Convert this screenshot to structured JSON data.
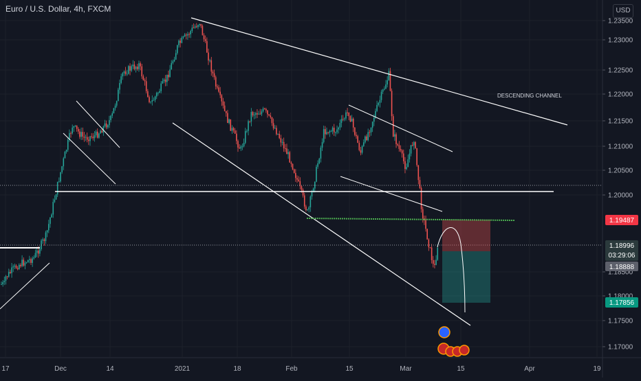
{
  "header": {
    "title": "Euro / U.S. Dollar, 4h, FXCM",
    "currency": "USD"
  },
  "annotation": {
    "channel_label": "DESCENDING CHANNEL"
  },
  "price_axis": {
    "ticks": [
      "1.23500",
      "1.23000",
      "1.22500",
      "1.22000",
      "1.21500",
      "1.21000",
      "1.20500",
      "1.20000",
      "1.18500",
      "1.18000",
      "1.17500",
      "1.17000"
    ]
  },
  "time_axis": {
    "ticks": [
      "17",
      "Dec",
      "14",
      "2021",
      "18",
      "Feb",
      "15",
      "Mar",
      "15",
      "Apr",
      "19"
    ]
  },
  "price_badges": {
    "stop_loss": "1.19487",
    "current": "1.18996",
    "countdown": "03:29:06",
    "entry": "1.18888",
    "target": "1.17856"
  },
  "colors": {
    "background": "#131722",
    "up": "#26a69a",
    "down": "#ef5350",
    "stop_badge": "#f23645",
    "target_badge": "#089981",
    "current_badge": "#2b3a3c",
    "entry_badge": "#5d606b"
  },
  "chart_data": {
    "type": "candlestick",
    "symbol": "EURUSD",
    "timeframe": "4h",
    "ylim": [
      1.1675,
      1.2365
    ],
    "levels": {
      "stop_loss": 1.19487,
      "entry": 1.18888,
      "current": 1.18996,
      "target": 1.17856,
      "horizontal_support": 1.2007,
      "dotted_level": 1.202,
      "green_support": 1.1953
    },
    "path": [
      {
        "date": "Nov 17",
        "price": 1.1825
      },
      {
        "date": "Nov 20",
        "price": 1.185
      },
      {
        "date": "Nov 24",
        "price": 1.1865
      },
      {
        "date": "Nov 27",
        "price": 1.191
      },
      {
        "date": "Dec 1",
        "price": 1.204
      },
      {
        "date": "Dec 4",
        "price": 1.2135
      },
      {
        "date": "Dec 7",
        "price": 1.211
      },
      {
        "date": "Dec 10",
        "price": 1.2115
      },
      {
        "date": "Dec 14",
        "price": 1.215
      },
      {
        "date": "Dec 17",
        "price": 1.2245
      },
      {
        "date": "Dec 21",
        "price": 1.226
      },
      {
        "date": "Dec 24",
        "price": 1.218
      },
      {
        "date": "Dec 28",
        "price": 1.223
      },
      {
        "date": "Dec 31",
        "price": 1.23
      },
      {
        "date": "Jan 6",
        "price": 1.2348
      },
      {
        "date": "Jan 11",
        "price": 1.221
      },
      {
        "date": "Jan 14",
        "price": 1.215
      },
      {
        "date": "Jan 18",
        "price": 1.2085
      },
      {
        "date": "Jan 21",
        "price": 1.216
      },
      {
        "date": "Jan 25",
        "price": 1.2165
      },
      {
        "date": "Jan 28",
        "price": 1.213
      },
      {
        "date": "Feb 1",
        "price": 1.206
      },
      {
        "date": "Feb 5",
        "price": 1.1955
      },
      {
        "date": "Feb 9",
        "price": 1.2125
      },
      {
        "date": "Feb 12",
        "price": 1.2125
      },
      {
        "date": "Feb 15",
        "price": 1.2165
      },
      {
        "date": "Feb 18",
        "price": 1.208
      },
      {
        "date": "Feb 22",
        "price": 1.217
      },
      {
        "date": "Feb 25",
        "price": 1.224
      },
      {
        "date": "Feb 26",
        "price": 1.212
      },
      {
        "date": "Mar 1",
        "price": 1.205
      },
      {
        "date": "Mar 3",
        "price": 1.211
      },
      {
        "date": "Mar 5",
        "price": 1.196
      },
      {
        "date": "Mar 8",
        "price": 1.184
      },
      {
        "date": "Mar 9",
        "price": 1.1899
      }
    ],
    "trendlines": [
      {
        "name": "channel-top",
        "from": {
          "date": "Jan 6",
          "price": 1.2355
        },
        "to": {
          "date": "Mar 29",
          "price": 1.214
        }
      },
      {
        "name": "channel-bottom",
        "from": {
          "date": "Dec 25",
          "price": 1.2155
        },
        "to": {
          "date": "Mar 12",
          "price": 1.1735
        }
      },
      {
        "name": "horizontal-support",
        "from": {
          "date": "Nov 27",
          "price": 1.2007
        },
        "to": {
          "date": "Mar 29",
          "price": 1.2007
        }
      }
    ]
  }
}
